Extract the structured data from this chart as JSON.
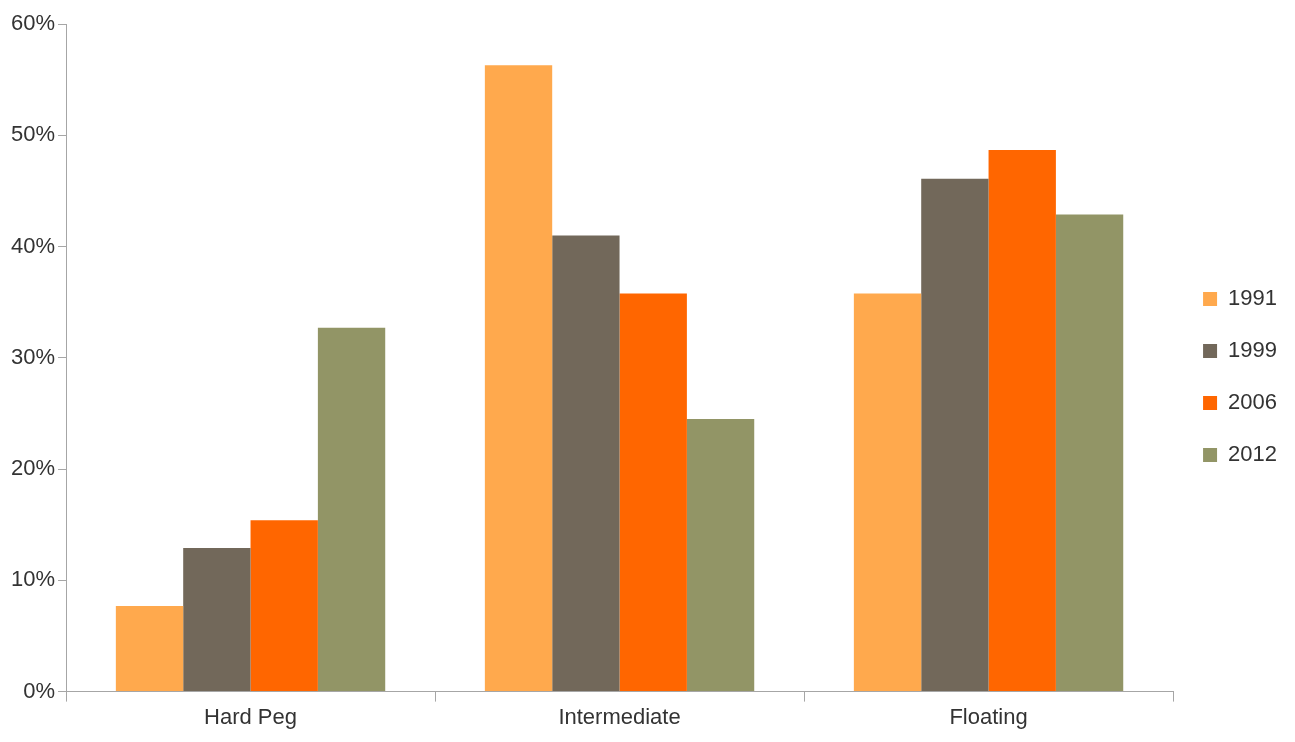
{
  "chart_data": {
    "type": "bar",
    "categories": [
      "Hard Peg",
      "Intermediate",
      "Floating"
    ],
    "series": [
      {
        "name": "1991",
        "color": "#ffa94d",
        "values": [
          7.7,
          56.3,
          35.8
        ]
      },
      {
        "name": "1999",
        "color": "#72685a",
        "values": [
          12.9,
          41.0,
          46.1
        ]
      },
      {
        "name": "2006",
        "color": "#ff6600",
        "values": [
          15.4,
          35.8,
          48.7
        ]
      },
      {
        "name": "2012",
        "color": "#929566",
        "values": [
          32.7,
          24.5,
          42.9
        ]
      }
    ],
    "ylim": [
      0,
      60
    ],
    "yticks": [
      {
        "value": 0,
        "label": "0%"
      },
      {
        "value": 10,
        "label": "10%"
      },
      {
        "value": 20,
        "label": "20%"
      },
      {
        "value": 30,
        "label": "30%"
      },
      {
        "value": 40,
        "label": "40%"
      },
      {
        "value": 50,
        "label": "50%"
      },
      {
        "value": 60,
        "label": "60%"
      }
    ],
    "grid": false,
    "legend": "right"
  }
}
